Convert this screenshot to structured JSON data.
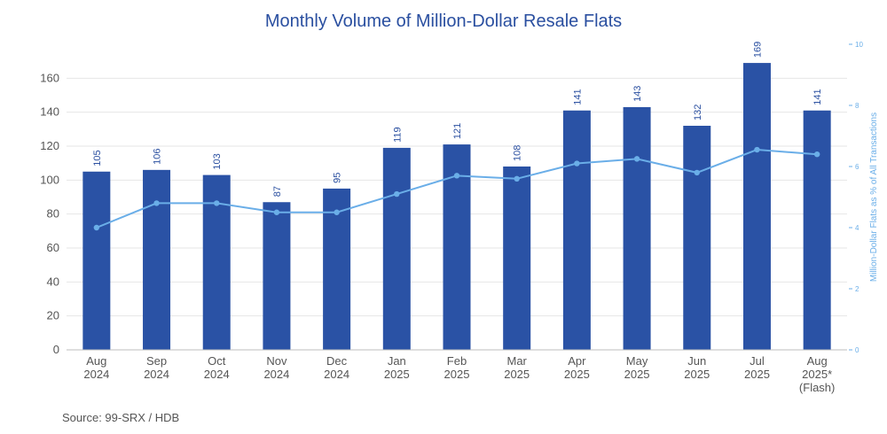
{
  "chart_data": {
    "type": "bar",
    "title": "Monthly Volume of Million-Dollar Resale Flats",
    "categories": [
      [
        "Aug",
        "2024"
      ],
      [
        "Sep",
        "2024"
      ],
      [
        "Oct",
        "2024"
      ],
      [
        "Nov",
        "2024"
      ],
      [
        "Dec",
        "2024"
      ],
      [
        "Jan",
        "2025"
      ],
      [
        "Feb",
        "2025"
      ],
      [
        "Mar",
        "2025"
      ],
      [
        "Apr",
        "2025"
      ],
      [
        "May",
        "2025"
      ],
      [
        "Jun",
        "2025"
      ],
      [
        "Jul",
        "2025"
      ],
      [
        "Aug",
        "2025*",
        "(Flash)"
      ]
    ],
    "series": [
      {
        "type": "bar",
        "axis": "left",
        "values": [
          105,
          106,
          103,
          87,
          95,
          119,
          121,
          108,
          141,
          143,
          132,
          169,
          141
        ],
        "color": "#2a52a5"
      },
      {
        "type": "line",
        "axis": "right",
        "values": [
          4.0,
          4.8,
          4.8,
          4.5,
          4.5,
          5.1,
          5.7,
          5.6,
          6.1,
          6.25,
          5.8,
          6.55,
          6.4
        ],
        "color": "#6aaee8"
      }
    ],
    "y_left": {
      "ylim": [
        0,
        180
      ],
      "ticks": [
        0,
        20,
        40,
        60,
        80,
        100,
        120,
        140,
        160
      ]
    },
    "y_right": {
      "label": "Million-Dollar Flats as % of All Transactions",
      "ylim": [
        0,
        10
      ],
      "ticks": [
        0,
        2,
        4,
        6,
        8,
        10
      ]
    },
    "grid": true,
    "legend": "none"
  },
  "source": "Source: 99-SRX / HDB"
}
